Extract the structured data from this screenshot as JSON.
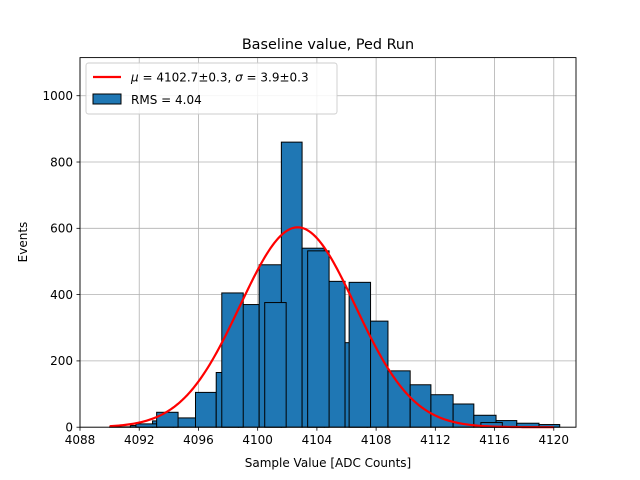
{
  "chart_data": {
    "type": "bar",
    "title": "Baseline value, Ped Run",
    "xlabel": "Sample Value [ADC Counts]",
    "ylabel": "Events",
    "xlim": [
      4088,
      4121.5
    ],
    "ylim": [
      0,
      1115
    ],
    "x_ticks": [
      4088,
      4092,
      4096,
      4100,
      4104,
      4108,
      4112,
      4116,
      4120
    ],
    "y_ticks": [
      0,
      200,
      400,
      600,
      800,
      1000
    ],
    "grid": true,
    "legend_position": "top-left",
    "histogram": {
      "name": "RMS = 4.04",
      "color": "#1f77b4",
      "edge_color": "#000000",
      "bin_edges": [
        4090,
        4091.4,
        4092.9,
        4094.3,
        4095.8,
        4097.2,
        4098.7,
        4100.1,
        4101.6,
        4103.0,
        4104.5,
        4105.9,
        4107.4,
        4108.8,
        4110.3,
        4111.7,
        4113.2,
        4114.6,
        4116.1,
        4117.5,
        4119.0,
        4120.4
      ],
      "counts": [
        1,
        5,
        19,
        28,
        105,
        165,
        370,
        490,
        860,
        540,
        440,
        255,
        320,
        170,
        128,
        98,
        70,
        36,
        20,
        12,
        8
      ],
      "extra_bins": [
        {
          "center": 4092.5,
          "count": 10
        },
        {
          "center": 4093.9,
          "count": 45
        },
        {
          "center": 4098.3,
          "count": 405
        },
        {
          "center": 4101.2,
          "count": 376
        },
        {
          "center": 4104.1,
          "count": 532
        },
        {
          "center": 4106.9,
          "count": 437
        },
        {
          "center": 4115.8,
          "count": 14
        }
      ]
    },
    "fit": {
      "name": "$\\mu$ = 4102.7±0.3, $\\sigma$ = 3.9±0.3",
      "label_mu_symbol": "μ",
      "label_mu_text": " = 4102.7±0.3, ",
      "label_sigma_symbol": "σ",
      "label_sigma_text": " = 3.9±0.3",
      "color": "#ff0000",
      "mu": 4102.7,
      "sigma": 3.9,
      "amplitude": 603,
      "x_range": [
        4090,
        4120
      ]
    }
  }
}
